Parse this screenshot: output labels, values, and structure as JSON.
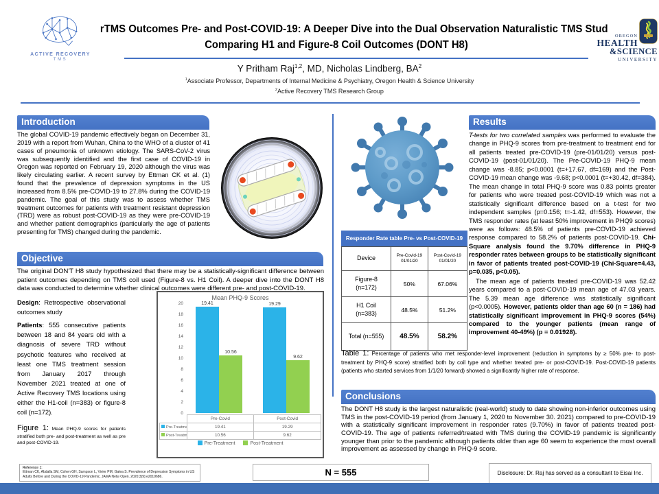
{
  "colors": {
    "accent_blue": "#4472C4",
    "bottom_bar": "#3F6FB6",
    "bar_blue": "#2BB3E8",
    "bar_green": "#92D050",
    "virus_blue": "#5E9BC9",
    "ohsu_navy": "#1f3864"
  },
  "header": {
    "logo_ar": {
      "line1": "ACTIVE RECOVERY",
      "line2": "TMS"
    },
    "title_line1": "rTMS Outcomes Pre- and Post-COVID-19: A Deeper Dive into the Dual Observation Naturalistic TMS Stud",
    "title_line2": "Comparing H1 and Figure-8 Coil Outcomes (DONT H8)",
    "authors": {
      "name1": "Y Pritham Raj",
      "sup1": "1,2",
      "rest": ", MD, Nicholas Lindberg, BA",
      "sup2": "2"
    },
    "affiliations": [
      {
        "sup": "1",
        "text": "Associate Professor, Departments of Internal Medicine & Psychiatry, Oregon Health & Science University"
      },
      {
        "sup": "2",
        "text": "Active Recovery TMS Research Group"
      }
    ],
    "ohsu": {
      "line1": "OREGON",
      "line2": "HEALTH",
      "line3": "&SCIENCE",
      "line4": "UNIVERSITY"
    }
  },
  "sections": {
    "intro": {
      "title": "Introduction",
      "body": "The global COVID-19 pandemic effectively began on December 31, 2019 with a report from Wuhan, China to the WHO of a cluster of 41 cases of pneumonia of unknown etiology.  The SARS-CoV-2 virus was subsequently identified and the first case of COVID-19 in Oregon was reported on February 19, 2020 although the virus was likely circulating earlier.  A recent survey by Ettman CK et al. (1) found that the prevalence of depression symptoms in the US increased from 8.5% pre-COVID-19 to 27.8% during the COVID-19 pandemic.  The goal of this study was to assess whether TMS treatment outcomes for patients with treatment resistant depression (TRD) were as robust post-COVID-19 as they were pre-COVID-19 and whether patient demographics (particularly the age of patients presenting for TMS) changed during the pandemic."
    },
    "objective": {
      "title": "Objective",
      "body": "The original DON'T H8 study hypothesized that there may be a statistically-significant difference between patient outcomes depending on TMS coil used (Figure-8 vs. H1 Coil). A deeper dive into the DONT H8 data was conducted to determine whether clinical outcomes were different pre- and post-COVID-19."
    },
    "methods": {
      "design_label": "Design",
      "design_text": ": Retrospective observational outcomes study",
      "patients_label": "Patients",
      "patients_text": ": 555 consecutive patients between 18 and 84 years old with a diagnosis of severe TRD without psychotic features who received at least one TMS treatment session from January 2017 through November 2021 treated at one of Active Recovery TMS locations using either the H1-coil (n=383) or figure-8 coil (n=172)."
    },
    "figure1": {
      "label": "Figure 1:",
      "caption": "Mean PHQ-9 scores for patients stratified both pre- and post-treatment as well as pre and post-COVID-19."
    },
    "results": {
      "title": "Results",
      "p1_italic": "T-tests for two correlated samples",
      "p1_text": " was performed to evaluate the change in PHQ-9 scores from pre-treatment to treatment end for all patients treated pre-COVID-19 (pre-01/01/20) versus post-COVID-19 (post-01/01/20).   The Pre-COVID-19 PHQ-9 mean change was -8.85; p<0.0001 (t=+17.67, df=169) and the Post-COVID-19 mean change was -9.68; p<0.0001 (t=+30.42, df=384).  The mean change in total PHQ-9 score was 0.83 points greater for patients who were treated post-COVID-19 which was not a statistically significant difference based on a t-test for two independent samples (p=0.156; t=-1.42, df=553).  However, the TMS responder rates (at least 50% improvement in PHQ9 scores) were as follows: 48.5% of patients pre-COVID-19 achieved response compared to 58.2% of patients post-COVID-19.  ",
      "p1_bold": "Chi-Square analysis found the 9.70% difference in PHQ-9 responder rates between groups to be statistically significant in favor of patients treated post-COVID-19 (Chi-Square=4.43, p=0.035, p<0.05).",
      "p2_text": "The mean age of patients treated pre-COVID-19 was 52.42 years compared to a post-COVID-19 mean age of 47.03 years. The 5.39 mean age difference was statistically significant (p<0.0005).  ",
      "p2_bold": "However, patients older than age 60 (n = 186) had statistically significant improvement in PHQ-9 scores (54%) compared to the younger patients (mean range of improvement 40-49%) (p = 0.01928)."
    },
    "table1": {
      "label": "Table 1:",
      "caption": "Percentage of patients who met responder-level improvement (reduction in symptoms by ≥ 50% pre- to post-treatment by PHQ-9 score) stratified both by coil type and whether treated pre- or post-COVID-19. Post-COVID-19 patients (patients who started services from 1/1/20 forward) showed a significantly higher rate of response."
    },
    "conclusions": {
      "title": "Conclusions",
      "body": "The DONT H8 study is the largest naturalistic (real-world) study to date showing non-inferior outcomes using TMS in the post-COVID-19 period (from January 1, 2020 to November 30. 2021) compared to pre-COVID-19 with a statistically significant improvement in responder rates (9.70%) in favor of patients treated post-COVID-19.  The age of patients referred/treated with TMS during the COVID-19 pandemic is significantly younger than prior to the pandemic although patients older than age 60 seem to experience the most overall improvement as assessed by change in PHQ-9 score."
    }
  },
  "responder_table": {
    "title": "Responder Rate table Pre- vs Post-COVID-19",
    "col_device": "Device",
    "col_pre": [
      "Pre-Covid-19",
      "01/01/20"
    ],
    "col_post": [
      "Post-Covid-19",
      "01/01/20"
    ],
    "rows": [
      {
        "device": "Figure-8",
        "n": "(n=172)",
        "pre": "50%",
        "post": "67.06%"
      },
      {
        "device": "H1 Coil",
        "n": "(n=383)",
        "pre": "48.5%",
        "post": "51.2%"
      },
      {
        "device": "Total (n=555)",
        "n": "",
        "pre": "48.5%",
        "post": "58.2%"
      }
    ]
  },
  "chart_data": {
    "type": "bar",
    "title": "Mean PHQ-9 Scores",
    "categories": [
      "Pre-Covid",
      "Post-Covid"
    ],
    "series": [
      {
        "name": "Pre-Treatment",
        "color": "#2BB3E8",
        "values": [
          19.41,
          19.29
        ]
      },
      {
        "name": "Post-Treatment",
        "color": "#92D050",
        "values": [
          10.56,
          9.62
        ]
      }
    ],
    "ylim": [
      0,
      20
    ],
    "ytick_step": 2,
    "grid": false,
    "legend_position": "bottom",
    "data_table_shown": true
  },
  "footer": {
    "reference_label": "Reference 1:",
    "reference_text": "Ettman CK, Abdalla SM, Cohen GH, Sampson L, Vivier PM, Galea S. Prevalence of Depression Symptoms in US Adults Before and During the COVID-19 Pandemic. JAMA Netw Open. 2020;3(9):e2019686.",
    "n_total": "N = 555",
    "disclosure": "Disclosure:  Dr. Raj has served as a consultant to Eisai Inc."
  }
}
